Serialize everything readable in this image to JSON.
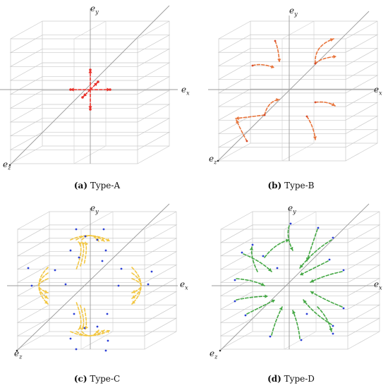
{
  "axis_labels": {
    "x_main": "e",
    "x_sub": "x",
    "y_main": "e",
    "y_sub": "y",
    "z_main": "e",
    "z_sub": "z"
  },
  "panels": [
    {
      "id": "a",
      "letter": "(a)",
      "name": "Type-A",
      "arrow_color": "#e8312a",
      "dot_color": "#e8312a"
    },
    {
      "id": "b",
      "letter": "(b)",
      "name": "Type-B",
      "arrow_color": "#e8743b",
      "dot_color": "#d84a2a"
    },
    {
      "id": "c",
      "letter": "(c)",
      "name": "Type-C",
      "arrow_color": "#f2c744",
      "dot_color": "#2b3fd6"
    },
    {
      "id": "d",
      "letter": "(d)",
      "name": "Type-D",
      "arrow_color": "#45a845",
      "dot_color": "#2b3fd6"
    }
  ]
}
